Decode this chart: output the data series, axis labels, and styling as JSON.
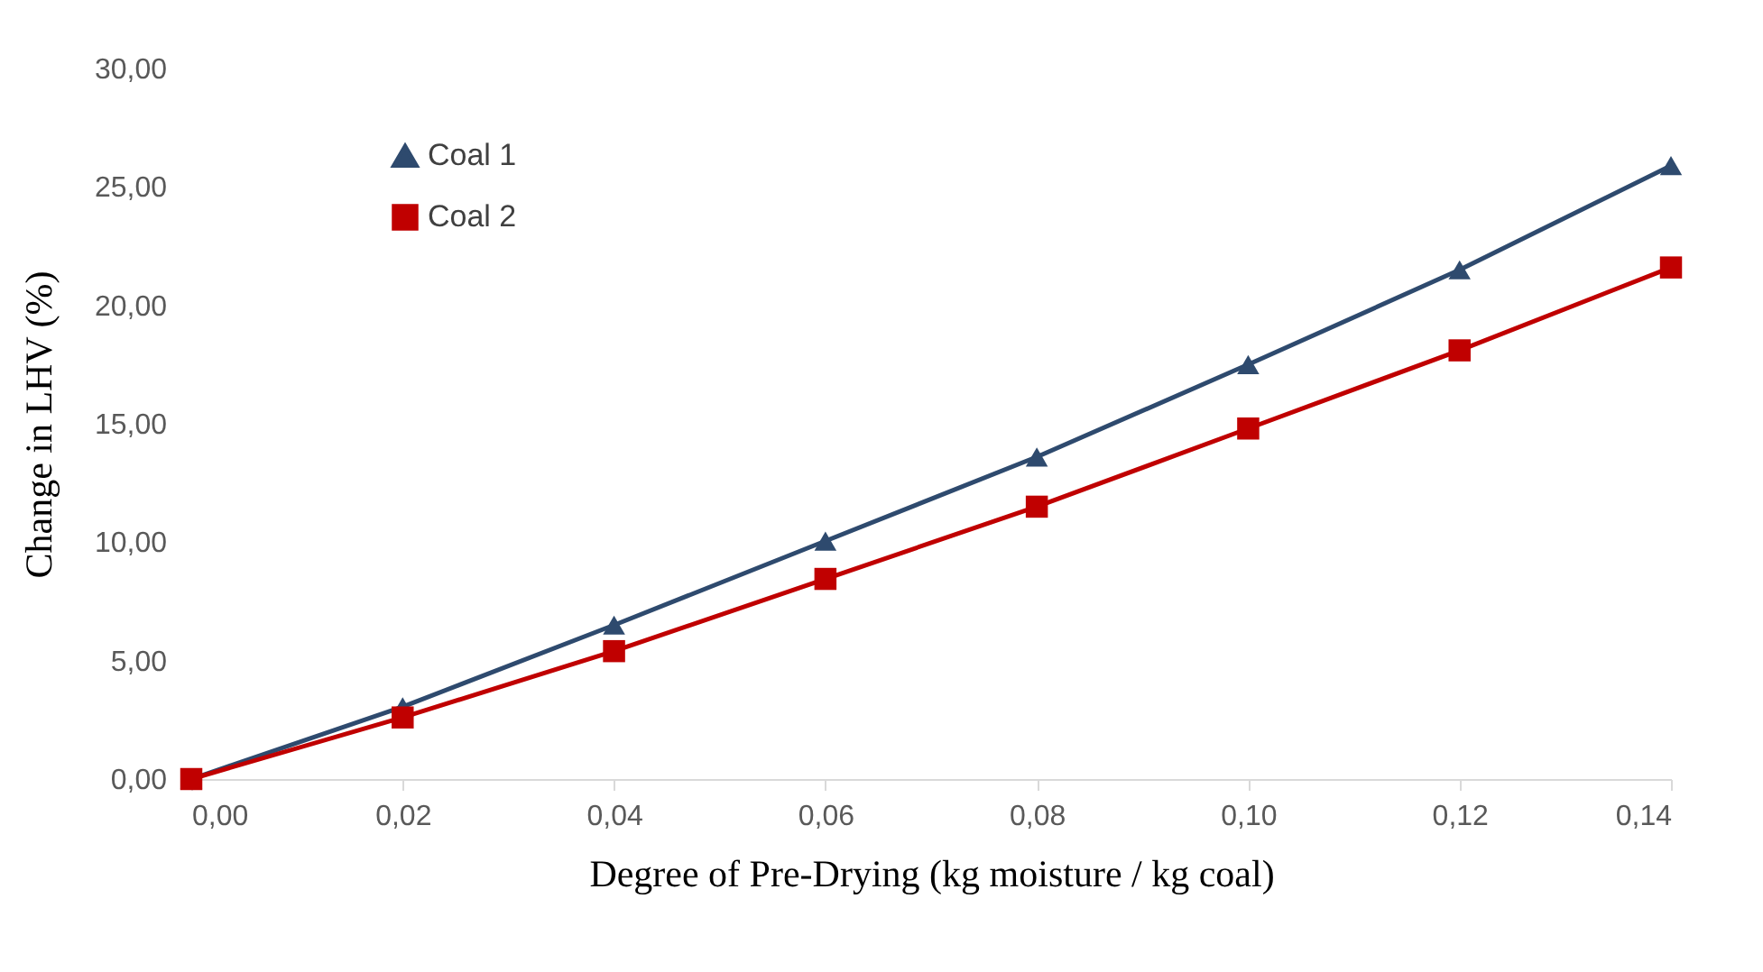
{
  "chart_data": {
    "type": "line",
    "xlabel": "Degree of Pre-Drying (kg moisture / kg coal)",
    "ylabel": "Change in LHV (%)",
    "x": [
      0,
      0.02,
      0.04,
      0.06,
      0.08,
      0.1,
      0.12,
      0.14
    ],
    "series": [
      {
        "name": "Coal 1",
        "color": "#2e4a6e",
        "marker": "triangle",
        "values": [
          0,
          3.05,
          6.5,
          10.05,
          13.6,
          17.5,
          21.5,
          25.9
        ]
      },
      {
        "name": "Coal 2",
        "color": "#c00000",
        "marker": "square",
        "values": [
          0,
          2.6,
          5.4,
          8.45,
          11.5,
          14.8,
          18.1,
          21.6
        ]
      }
    ],
    "xlim": [
      0,
      0.14
    ],
    "xticks": [
      {
        "value": 0,
        "label": "0,00"
      },
      {
        "value": 0.02,
        "label": "0,02"
      },
      {
        "value": 0.04,
        "label": "0,04"
      },
      {
        "value": 0.06,
        "label": "0,06"
      },
      {
        "value": 0.08,
        "label": "0,08"
      },
      {
        "value": 0.1,
        "label": "0,10"
      },
      {
        "value": 0.12,
        "label": "0,12"
      },
      {
        "value": 0.14,
        "label": "0,14"
      }
    ],
    "ylim": [
      0,
      30
    ],
    "yticks": [
      {
        "value": 0,
        "label": "0,00"
      },
      {
        "value": 5,
        "label": "5,00"
      },
      {
        "value": 10,
        "label": "10,00"
      },
      {
        "value": 15,
        "label": "15,00"
      },
      {
        "value": 20,
        "label": "20,00"
      },
      {
        "value": 25,
        "label": "25,00"
      },
      {
        "value": 30,
        "label": "30,00"
      }
    ],
    "grid": false,
    "legend": "top left",
    "line_style": "solid"
  }
}
